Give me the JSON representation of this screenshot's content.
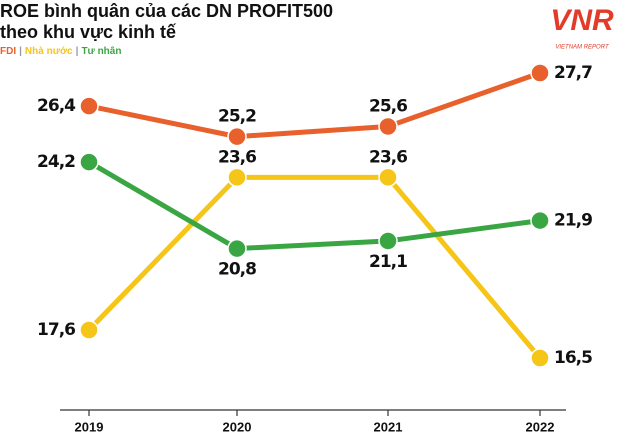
{
  "chart_data": {
    "type": "line",
    "title": [
      "ROE bình quân của các DN PROFIT500",
      "theo khu vực kinh tế"
    ],
    "legend_separator": "|",
    "logo": {
      "mark": "VNR",
      "text": "VIETNAM REPORT"
    },
    "categories": [
      "2019",
      "2020",
      "2021",
      "2022"
    ],
    "series": [
      {
        "name": "FDI",
        "color": "#e8602c",
        "values": [
          26.4,
          25.2,
          25.6,
          27.7
        ],
        "value_labels": [
          "26,4",
          "25,2",
          "25,6",
          "27,7"
        ]
      },
      {
        "name": "Nhà nước",
        "color": "#f5c518",
        "values": [
          17.6,
          23.6,
          23.6,
          16.5
        ],
        "value_labels": [
          "17,6",
          "23,6",
          "23,6",
          "16,5"
        ]
      },
      {
        "name": "Tư nhân",
        "color": "#3aa643",
        "values": [
          24.2,
          20.8,
          21.1,
          21.9
        ],
        "value_labels": [
          "24,2",
          "20,8",
          "21,1",
          "21,9"
        ]
      }
    ]
  }
}
